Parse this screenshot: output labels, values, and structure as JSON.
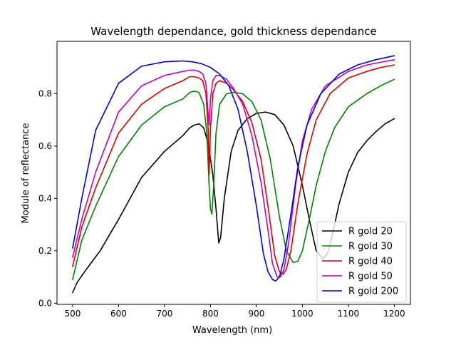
{
  "chart_data": {
    "type": "line",
    "title": "Wavelength dependance, gold thickness dependance",
    "xlabel": "Wavelength (nm)",
    "ylabel": "Module of reflectance",
    "xlim": [
      466,
      1235
    ],
    "ylim": [
      -0.0046,
      1.0
    ],
    "xticks": [
      500,
      600,
      700,
      800,
      900,
      1000,
      1100,
      1200
    ],
    "yticks": [
      0.0,
      0.2,
      0.4,
      0.6,
      0.8
    ],
    "xtick_labels": [
      "500",
      "600",
      "700",
      "800",
      "900",
      "1000",
      "1100",
      "1200"
    ],
    "ytick_labels": [
      "0.0",
      "0.2",
      "0.4",
      "0.6",
      "0.8"
    ],
    "grid": false,
    "legend_position": "lower-right",
    "series": [
      {
        "name": "R gold 20",
        "color": "#000000",
        "x": [
          500,
          510,
          530,
          560,
          600,
          650,
          700,
          740,
          755,
          765,
          775,
          785,
          795,
          805,
          812,
          818,
          822,
          830,
          845,
          860,
          880,
          900,
          920,
          940,
          960,
          980,
          1000,
          1015,
          1030,
          1045,
          1055,
          1065,
          1080,
          1100,
          1120,
          1140,
          1160,
          1180,
          1200
        ],
        "y": [
          0.04,
          0.08,
          0.13,
          0.2,
          0.32,
          0.48,
          0.58,
          0.64,
          0.67,
          0.68,
          0.685,
          0.67,
          0.61,
          0.49,
          0.36,
          0.23,
          0.25,
          0.4,
          0.58,
          0.66,
          0.705,
          0.725,
          0.73,
          0.72,
          0.68,
          0.6,
          0.45,
          0.32,
          0.2,
          0.17,
          0.19,
          0.26,
          0.38,
          0.5,
          0.575,
          0.62,
          0.655,
          0.685,
          0.705
        ]
      },
      {
        "name": "R gold 30",
        "color": "#008000",
        "x": [
          500,
          520,
          550,
          600,
          650,
          700,
          740,
          755,
          765,
          775,
          785,
          792,
          797,
          800,
          803,
          807,
          812,
          820,
          835,
          850,
          870,
          890,
          910,
          930,
          950,
          965,
          980,
          990,
          1000,
          1015,
          1030,
          1050,
          1070,
          1100,
          1140,
          1170,
          1200
        ],
        "y": [
          0.09,
          0.24,
          0.37,
          0.56,
          0.68,
          0.75,
          0.78,
          0.805,
          0.81,
          0.805,
          0.76,
          0.65,
          0.45,
          0.36,
          0.34,
          0.45,
          0.65,
          0.76,
          0.8,
          0.805,
          0.8,
          0.77,
          0.7,
          0.55,
          0.33,
          0.2,
          0.155,
          0.16,
          0.2,
          0.32,
          0.45,
          0.58,
          0.67,
          0.75,
          0.8,
          0.83,
          0.855
        ]
      },
      {
        "name": "R gold 40",
        "color": "#e00000",
        "x": [
          500,
          520,
          550,
          600,
          650,
          700,
          740,
          755,
          765,
          775,
          783,
          790,
          795,
          797,
          800,
          805,
          812,
          820,
          835,
          850,
          870,
          890,
          910,
          925,
          940,
          950,
          958,
          965,
          975,
          990,
          1010,
          1030,
          1060,
          1100,
          1140,
          1170,
          1200
        ],
        "y": [
          0.14,
          0.29,
          0.44,
          0.65,
          0.76,
          0.82,
          0.85,
          0.865,
          0.865,
          0.86,
          0.85,
          0.8,
          0.66,
          0.49,
          0.67,
          0.8,
          0.84,
          0.85,
          0.84,
          0.815,
          0.77,
          0.69,
          0.55,
          0.37,
          0.18,
          0.12,
          0.11,
          0.13,
          0.2,
          0.38,
          0.57,
          0.7,
          0.8,
          0.86,
          0.885,
          0.9,
          0.91
        ]
      },
      {
        "name": "R gold 50",
        "color": "#c000c0",
        "x": [
          500,
          520,
          550,
          600,
          650,
          700,
          740,
          755,
          765,
          775,
          783,
          790,
          795,
          797,
          800,
          805,
          812,
          820,
          835,
          850,
          870,
          890,
          910,
          925,
          935,
          945,
          952,
          960,
          970,
          985,
          1000,
          1020,
          1050,
          1100,
          1140,
          1170,
          1200
        ],
        "y": [
          0.175,
          0.32,
          0.5,
          0.73,
          0.83,
          0.87,
          0.885,
          0.89,
          0.89,
          0.885,
          0.875,
          0.84,
          0.72,
          0.68,
          0.78,
          0.85,
          0.87,
          0.87,
          0.855,
          0.82,
          0.76,
          0.64,
          0.46,
          0.28,
          0.15,
          0.1,
          0.1,
          0.13,
          0.23,
          0.45,
          0.62,
          0.74,
          0.83,
          0.885,
          0.91,
          0.92,
          0.93
        ]
      },
      {
        "name": "R gold 200",
        "color": "#0000e0",
        "x": [
          500,
          520,
          550,
          600,
          650,
          700,
          740,
          760,
          780,
          800,
          820,
          840,
          860,
          880,
          900,
          915,
          925,
          935,
          942,
          950,
          960,
          975,
          990,
          1010,
          1040,
          1080,
          1120,
          1160,
          1200
        ],
        "y": [
          0.21,
          0.4,
          0.66,
          0.84,
          0.905,
          0.922,
          0.925,
          0.922,
          0.915,
          0.9,
          0.875,
          0.83,
          0.74,
          0.58,
          0.37,
          0.19,
          0.12,
          0.09,
          0.085,
          0.1,
          0.17,
          0.34,
          0.52,
          0.68,
          0.8,
          0.875,
          0.91,
          0.93,
          0.945
        ]
      }
    ]
  }
}
